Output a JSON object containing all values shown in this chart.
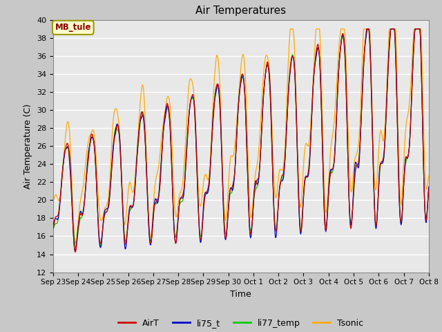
{
  "title": "Air Temperatures",
  "ylabel": "Air Temperature (C)",
  "xlabel": "Time",
  "ylim": [
    12,
    40
  ],
  "yticks": [
    12,
    14,
    16,
    18,
    20,
    22,
    24,
    26,
    28,
    30,
    32,
    34,
    36,
    38,
    40
  ],
  "xtick_labels": [
    "Sep 23",
    "Sep 24",
    "Sep 25",
    "Sep 26",
    "Sep 27",
    "Sep 28",
    "Sep 29",
    "Sep 30",
    "Oct 1",
    "Oct 2",
    "Oct 3",
    "Oct 4",
    "Oct 5",
    "Oct 6",
    "Oct 7",
    "Oct 8"
  ],
  "annotation_text": "MB_tule",
  "annotation_bg": "#ffffcc",
  "annotation_border": "#999900",
  "annotation_text_color": "#880000",
  "colors": {
    "AirT": "#cc0000",
    "li75_t": "#0000cc",
    "li77_temp": "#00cc00",
    "Tsonic": "#ffaa00"
  },
  "fig_bg": "#c8c8c8",
  "plot_bg": "#e8e8e8",
  "grid_color": "#ffffff",
  "title_fontsize": 11
}
